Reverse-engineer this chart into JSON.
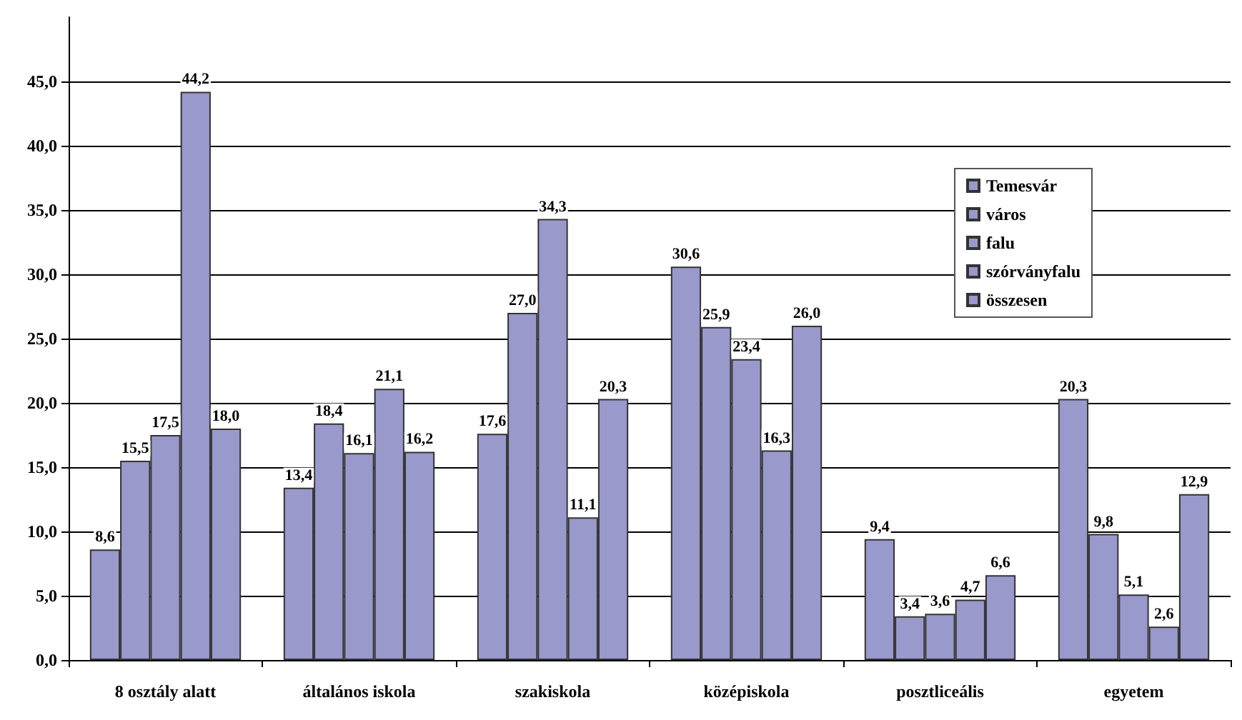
{
  "chart_data": {
    "type": "bar",
    "categories": [
      "8 osztály alatt",
      "általános iskola",
      "szakiskola",
      "középiskola",
      "posztliceális",
      "egyetem"
    ],
    "series": [
      {
        "name": "Temesvár",
        "color": "#9999cc",
        "values": [
          8.6,
          13.4,
          17.6,
          30.6,
          9.4,
          20.3
        ],
        "value_labels": [
          "8,6",
          "13,4",
          "17,6",
          "30,6",
          "9,4",
          "20,3"
        ]
      },
      {
        "name": "város",
        "color": "#9999cc",
        "values": [
          15.5,
          18.4,
          27.0,
          25.9,
          3.4,
          9.8
        ],
        "value_labels": [
          "15,5",
          "18,4",
          "27,0",
          "25,9",
          "3,4",
          "9,8"
        ]
      },
      {
        "name": "falu",
        "color": "#9999cc",
        "values": [
          17.5,
          16.1,
          34.3,
          23.4,
          3.6,
          5.1
        ],
        "value_labels": [
          "17,5",
          "16,1",
          "34,3",
          "23,4",
          "3,6",
          "5,1"
        ]
      },
      {
        "name": "szórványfalu",
        "color": "#9999cc",
        "values": [
          44.2,
          21.1,
          11.1,
          16.3,
          4.7,
          2.6
        ],
        "value_labels": [
          "44,2",
          "21,1",
          "11,1",
          "16,3",
          "4,7",
          "2,6"
        ]
      },
      {
        "name": "összesen",
        "color": "#9999cc",
        "values": [
          18.0,
          16.2,
          20.3,
          26.0,
          6.6,
          12.9
        ],
        "value_labels": [
          "18,0",
          "16,2",
          "20,3",
          "26,0",
          "6,6",
          "12,9"
        ]
      }
    ],
    "ylim": [
      0,
      50
    ],
    "yticks": [
      {
        "value": 0,
        "label": "0,0"
      },
      {
        "value": 5,
        "label": "5,0"
      },
      {
        "value": 10,
        "label": "10,0"
      },
      {
        "value": 15,
        "label": "15,0"
      },
      {
        "value": 20,
        "label": "20,0"
      },
      {
        "value": 25,
        "label": "25,0"
      },
      {
        "value": 30,
        "label": "30,0"
      },
      {
        "value": 35,
        "label": "35,0"
      },
      {
        "value": 40,
        "label": "40,0"
      },
      {
        "value": 45,
        "label": "45,0"
      }
    ],
    "grid": "y",
    "legend": "right"
  }
}
